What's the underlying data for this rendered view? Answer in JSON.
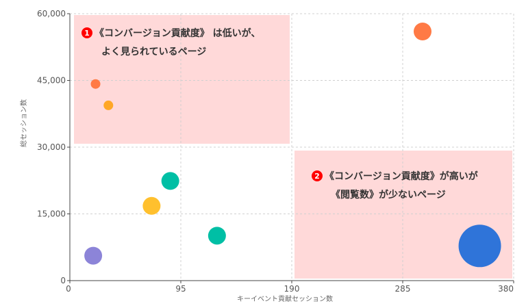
{
  "chart_data": {
    "type": "scatter",
    "xlabel": "キーイベント貢献セッション数",
    "ylabel": "総セッション数",
    "xlim": [
      0,
      380
    ],
    "ylim": [
      0,
      60000
    ],
    "x_ticks": [
      "0",
      "95",
      "190",
      "285",
      "380"
    ],
    "y_ticks": [
      "0",
      "15,000",
      "30,000",
      "45,000",
      "60,000"
    ],
    "grid": true,
    "bubbles": [
      {
        "x": 22,
        "y": 44200,
        "size": "small",
        "color": "#ff7a45"
      },
      {
        "x": 33,
        "y": 39400,
        "size": "small",
        "color": "#ffa726"
      },
      {
        "x": 302,
        "y": 56000,
        "size": "medium",
        "color": "#ff7a45"
      },
      {
        "x": 86,
        "y": 22400,
        "size": "medium",
        "color": "#00bfa5"
      },
      {
        "x": 70,
        "y": 16800,
        "size": "medium",
        "color": "#ffc02e"
      },
      {
        "x": 126,
        "y": 10100,
        "size": "medium",
        "color": "#00bfa5"
      },
      {
        "x": 20,
        "y": 5600,
        "size": "medium",
        "color": "#8c84d8"
      },
      {
        "x": 351,
        "y": 7800,
        "size": "large",
        "color": "#2f74d9"
      }
    ],
    "annotations": [
      {
        "id": "zone-1",
        "number": "1",
        "lines": [
          "《コンバージョン貢献度》 は低いが、",
          "よく見られているページ"
        ],
        "color": "#ff0000"
      },
      {
        "id": "zone-2",
        "number": "2",
        "lines": [
          "《コンバージョン貢献度》が高いが",
          "《閲覧数》が少ないページ"
        ],
        "color": "#ff0000"
      }
    ]
  }
}
